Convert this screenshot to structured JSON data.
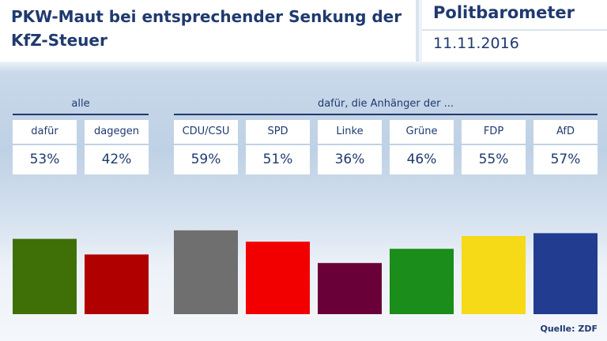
{
  "header": {
    "title": "PKW-Maut bei entsprechender Senkung der KfZ-Steuer",
    "brand": "Politbarometer",
    "date": "11.11.2016"
  },
  "groups": {
    "all_label": "alle",
    "parties_label": "dafür, die Anhänger der ..."
  },
  "source": "Quelle: ZDF",
  "chart_data": {
    "type": "bar",
    "title": "PKW-Maut bei entsprechender Senkung der KfZ-Steuer",
    "categories": [
      "dafür",
      "dagegen",
      "CDU/CSU",
      "SPD",
      "Linke",
      "Grüne",
      "FDP",
      "AfD"
    ],
    "values": [
      53,
      42,
      59,
      51,
      36,
      46,
      55,
      57
    ],
    "value_labels": [
      "53%",
      "42%",
      "59%",
      "51%",
      "36%",
      "46%",
      "55%",
      "57%"
    ],
    "unit": "%",
    "colors": [
      "#3f7008",
      "#b00000",
      "#6f6f6f",
      "#f20000",
      "#6a0038",
      "#1a8d1a",
      "#f6d917",
      "#223c8f"
    ],
    "ylim": [
      0,
      70
    ]
  }
}
